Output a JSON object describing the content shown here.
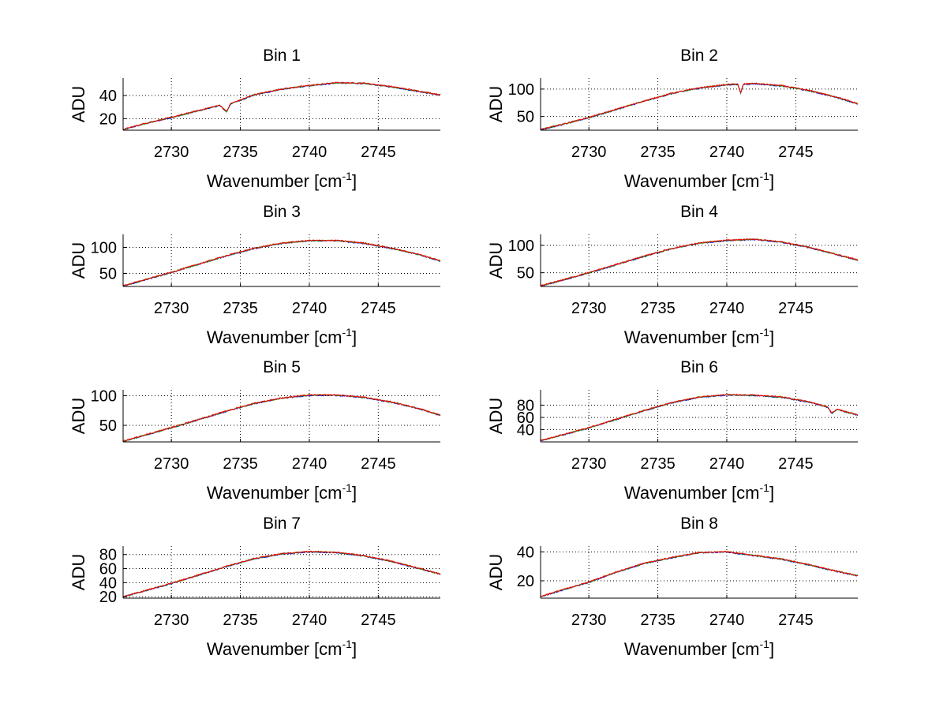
{
  "figure": {
    "chart_data": [
      {
        "type": "line",
        "title": "Bin 1",
        "xlabel": "Wavenumber [cm",
        "xlabel_sup": "-1",
        "xlabel_close": "]",
        "ylabel": "ADU",
        "xlim": [
          2726.5,
          2749.5
        ],
        "ylim": [
          10,
          55
        ],
        "xticks": [
          2730,
          2735,
          2740,
          2745
        ],
        "yticks": [
          20,
          40
        ],
        "grid": true,
        "series_colors": [
          "#0000ff",
          "#00a000",
          "#ff0000"
        ],
        "x": [
          2726.5,
          2728,
          2730,
          2732,
          2733.5,
          2734,
          2734.3,
          2735,
          2736,
          2738,
          2740,
          2742,
          2744,
          2746,
          2748,
          2749.5
        ],
        "values": [
          10.5,
          15.5,
          21,
          27,
          31.5,
          26,
          33,
          36,
          40.5,
          45.5,
          48.5,
          51,
          50.5,
          47.5,
          43.5,
          40.5
        ]
      },
      {
        "type": "line",
        "title": "Bin 2",
        "xlabel": "Wavenumber [cm",
        "xlabel_sup": "-1",
        "xlabel_close": "]",
        "ylabel": "ADU",
        "xlim": [
          2726.5,
          2749.5
        ],
        "ylim": [
          25,
          120
        ],
        "xticks": [
          2730,
          2735,
          2740,
          2745
        ],
        "yticks": [
          50,
          100
        ],
        "grid": true,
        "series_colors": [
          "#0000ff",
          "#00a000",
          "#ff0000"
        ],
        "x": [
          2726.5,
          2728,
          2730,
          2732,
          2734,
          2736,
          2738,
          2740,
          2740.8,
          2741,
          2741.2,
          2742,
          2744,
          2746,
          2748,
          2749.5
        ],
        "values": [
          26,
          35,
          48,
          63,
          78,
          92,
          102,
          108,
          109,
          92,
          109,
          110,
          106,
          97,
          85,
          73
        ]
      },
      {
        "type": "line",
        "title": "Bin 3",
        "xlabel": "Wavenumber [cm",
        "xlabel_sup": "-1",
        "xlabel_close": "]",
        "ylabel": "ADU",
        "xlim": [
          2726.5,
          2749.5
        ],
        "ylim": [
          25,
          125
        ],
        "xticks": [
          2730,
          2735,
          2740,
          2745
        ],
        "yticks": [
          50,
          100
        ],
        "grid": true,
        "series_colors": [
          "#0000ff",
          "#00a000",
          "#ff0000"
        ],
        "x": [
          2726.5,
          2728,
          2730,
          2732,
          2734,
          2736,
          2738,
          2740,
          2742,
          2744,
          2746,
          2748,
          2749.5
        ],
        "values": [
          26,
          37,
          52,
          68,
          84,
          98,
          108,
          113,
          113,
          108,
          98,
          86,
          74
        ]
      },
      {
        "type": "line",
        "title": "Bin 4",
        "xlabel": "Wavenumber [cm",
        "xlabel_sup": "-1",
        "xlabel_close": "]",
        "ylabel": "ADU",
        "xlim": [
          2726.5,
          2749.5
        ],
        "ylim": [
          25,
          120
        ],
        "xticks": [
          2730,
          2735,
          2740,
          2745
        ],
        "yticks": [
          50,
          100
        ],
        "grid": true,
        "series_colors": [
          "#0000ff",
          "#00a000",
          "#ff0000"
        ],
        "x": [
          2726.5,
          2728,
          2730,
          2732,
          2734,
          2736,
          2738,
          2740,
          2742,
          2744,
          2746,
          2748,
          2749.5
        ],
        "values": [
          26,
          36,
          50,
          65,
          80,
          94,
          104,
          109,
          111,
          106,
          96,
          83,
          73
        ]
      },
      {
        "type": "line",
        "title": "Bin 5",
        "xlabel": "Wavenumber [cm",
        "xlabel_sup": "-1",
        "xlabel_close": "]",
        "ylabel": "ADU",
        "xlim": [
          2726.5,
          2749.5
        ],
        "ylim": [
          22,
          110
        ],
        "xticks": [
          2730,
          2735,
          2740,
          2745
        ],
        "yticks": [
          50,
          100
        ],
        "grid": true,
        "series_colors": [
          "#0000ff",
          "#00a000",
          "#ff0000"
        ],
        "x": [
          2726.5,
          2728,
          2730,
          2732,
          2734,
          2736,
          2738,
          2740,
          2742,
          2744,
          2746,
          2748,
          2749.5
        ],
        "values": [
          23,
          33,
          46,
          60,
          74,
          87,
          96,
          101,
          101,
          97,
          89,
          78,
          67
        ]
      },
      {
        "type": "line",
        "title": "Bin 6",
        "xlabel": "Wavenumber [cm",
        "xlabel_sup": "-1",
        "xlabel_close": "]",
        "ylabel": "ADU",
        "xlim": [
          2726.5,
          2749.5
        ],
        "ylim": [
          20,
          105
        ],
        "xticks": [
          2730,
          2735,
          2740,
          2745
        ],
        "yticks": [
          40,
          60,
          80
        ],
        "grid": true,
        "series_colors": [
          "#0000ff",
          "#00a000",
          "#ff0000"
        ],
        "x": [
          2726.5,
          2728,
          2730,
          2732,
          2734,
          2736,
          2738,
          2740,
          2742,
          2744,
          2746,
          2747.3,
          2747.6,
          2748,
          2749.5
        ],
        "values": [
          22,
          31,
          43,
          57,
          71,
          84,
          93,
          97,
          96,
          93,
          85,
          77,
          67,
          73,
          64
        ]
      },
      {
        "type": "line",
        "title": "Bin 7",
        "xlabel": "Wavenumber [cm",
        "xlabel_sup": "-1",
        "xlabel_close": "]",
        "ylabel": "ADU",
        "xlim": [
          2726.5,
          2749.5
        ],
        "ylim": [
          18,
          92
        ],
        "xticks": [
          2730,
          2735,
          2740,
          2745
        ],
        "yticks": [
          20,
          40,
          60,
          80
        ],
        "grid": true,
        "series_colors": [
          "#0000ff",
          "#00a000",
          "#ff0000"
        ],
        "x": [
          2726.5,
          2728,
          2730,
          2732,
          2734,
          2736,
          2738,
          2740,
          2742,
          2744,
          2746,
          2748,
          2749.5
        ],
        "values": [
          20,
          28,
          39,
          51,
          63,
          74,
          81,
          84,
          83,
          78,
          70,
          60,
          52
        ]
      },
      {
        "type": "line",
        "title": "Bin 8",
        "xlabel": "Wavenumber [cm",
        "xlabel_sup": "-1",
        "xlabel_close": "]",
        "ylabel": "ADU",
        "xlim": [
          2726.5,
          2749.5
        ],
        "ylim": [
          8,
          44
        ],
        "xticks": [
          2730,
          2735,
          2740,
          2745
        ],
        "yticks": [
          20,
          40
        ],
        "grid": true,
        "series_colors": [
          "#0000ff",
          "#00a000",
          "#ff0000"
        ],
        "x": [
          2726.5,
          2728,
          2730,
          2732,
          2734,
          2736,
          2738,
          2740,
          2742,
          2744,
          2746,
          2748,
          2749.5
        ],
        "values": [
          9,
          13.5,
          19,
          26,
          32,
          36,
          39.5,
          40,
          37.5,
          35,
          31,
          26.5,
          23.5
        ]
      }
    ]
  }
}
